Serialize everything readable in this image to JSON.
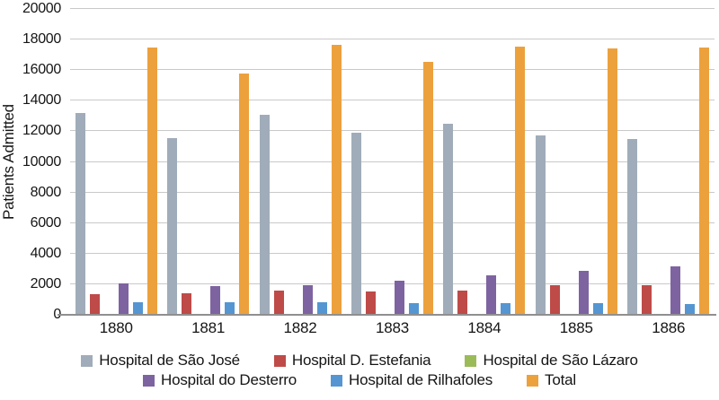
{
  "chart_data": {
    "type": "bar",
    "title": "",
    "xlabel": "",
    "ylabel": "Patients Admitted",
    "ylim": [
      0,
      20000
    ],
    "ytick_step": 2000,
    "grid": true,
    "legend_position": "bottom",
    "legend_rows": [
      3,
      3
    ],
    "categories": [
      "1880",
      "1881",
      "1882",
      "1883",
      "1884",
      "1885",
      "1886"
    ],
    "series": [
      {
        "name": "Hospital de São José",
        "color": "#a0acb9",
        "values": [
          13200,
          11550,
          13100,
          11900,
          12500,
          11750,
          11500
        ]
      },
      {
        "name": "Hospital D. Estefania",
        "color": "#be4b48",
        "values": [
          1350,
          1400,
          1600,
          1550,
          1600,
          1950,
          1950
        ]
      },
      {
        "name": "Hospital de São Lázaro",
        "color": "#9bbb59",
        "values": [
          0,
          0,
          0,
          0,
          0,
          0,
          0
        ]
      },
      {
        "name": "Hospital do Desterro",
        "color": "#7e63a1",
        "values": [
          2050,
          1850,
          1950,
          2200,
          2600,
          2850,
          3150
        ]
      },
      {
        "name": "Hospital de Rilhafoles",
        "color": "#5596d2",
        "values": [
          800,
          800,
          800,
          750,
          750,
          750,
          700
        ]
      },
      {
        "name": "Total",
        "color": "#eca13d",
        "values": [
          17500,
          15750,
          17650,
          16550,
          17550,
          17400,
          17450
        ]
      }
    ]
  }
}
